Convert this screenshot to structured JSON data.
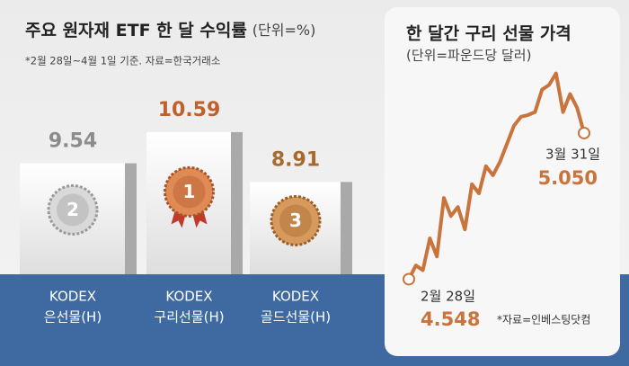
{
  "chart_data": [
    {
      "type": "bar",
      "title": "주요 원자재 ETF 한 달 수익률",
      "unit": "(단위=%)",
      "note": "*2월 28일~4월 1일 기준. 자료=한국거래소",
      "categories": [
        [
          "KODEX",
          "은선물(H)"
        ],
        [
          "KODEX",
          "구리선물(H)"
        ],
        [
          "KODEX",
          "골드선물(H)"
        ]
      ],
      "values": [
        9.54,
        10.59,
        8.91
      ],
      "ranks": [
        2,
        1,
        3
      ],
      "colors": [
        "#8c8c8c",
        "#c0612c",
        "#a8692c"
      ],
      "ylim": [
        5.8,
        11.5
      ]
    },
    {
      "type": "line",
      "title": "한 달간 구리 선물 가격",
      "subtitle": "(단위=파운드당 달러)",
      "source": "*자료=인베스팅닷컴",
      "color": "#c9733d",
      "values": [
        4.548,
        4.595,
        4.579,
        4.688,
        4.626,
        4.827,
        4.765,
        4.796,
        4.719,
        4.874,
        4.843,
        4.936,
        4.905,
        4.951,
        5.013,
        5.075,
        5.106,
        5.112,
        5.122,
        5.199,
        5.215,
        5.255,
        5.122,
        5.184,
        5.137,
        5.05
      ],
      "start": {
        "label": "2월 28일",
        "value": 4.548
      },
      "end": {
        "label": "3월 31일",
        "value": 5.05,
        "value_label": "5.050"
      },
      "ylim": [
        4.5,
        5.3
      ]
    }
  ]
}
